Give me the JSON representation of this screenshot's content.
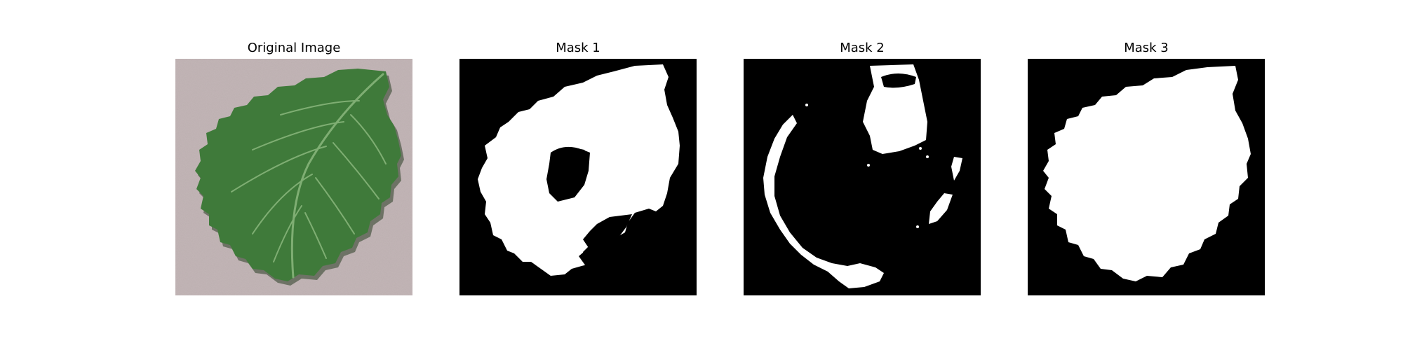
{
  "panels": [
    {
      "title": "Original Image"
    },
    {
      "title": "Mask 1"
    },
    {
      "title": "Mask 2"
    },
    {
      "title": "Mask 3"
    }
  ],
  "colors": {
    "background": "#c9bcbd",
    "leaf": "#3f7a3a",
    "leaf_vein": "#7fae73",
    "mask_fg": "#ffffff",
    "mask_bg": "#000000"
  }
}
